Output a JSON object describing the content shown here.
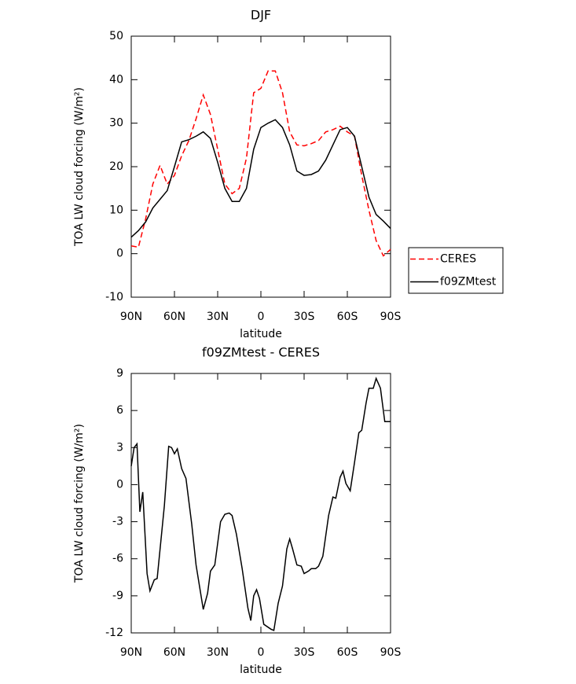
{
  "chart_data": [
    {
      "type": "line",
      "title": "DJF",
      "xlabel": "latitude",
      "ylabel": "TOA LW cloud forcing (W/m²)",
      "x": [
        90,
        85,
        80,
        75,
        70,
        65,
        60,
        55,
        50,
        45,
        40,
        35,
        30,
        25,
        20,
        15,
        10,
        5,
        0,
        -5,
        -10,
        -15,
        -20,
        -25,
        -30,
        -35,
        -40,
        -45,
        -50,
        -55,
        -60,
        -65,
        -70,
        -75,
        -80,
        -85,
        -90
      ],
      "series": [
        {
          "name": "CERES",
          "color": "#ff0000",
          "linestyle": "dashed",
          "values": [
            1.8,
            1.5,
            8,
            16,
            20.3,
            16,
            18,
            22.5,
            26,
            31,
            36.5,
            32,
            24,
            16,
            13.8,
            15,
            22,
            37,
            38,
            42,
            42,
            37,
            28,
            25,
            24.8,
            25.3,
            26,
            28,
            28.5,
            29.3,
            28,
            27,
            18,
            10,
            3,
            -0.5,
            1
          ]
        },
        {
          "name": "f09ZMtest",
          "color": "#000000",
          "linestyle": "solid",
          "values": [
            3.8,
            5.3,
            7.3,
            10.5,
            12.5,
            14.5,
            20,
            25.7,
            26.2,
            27,
            28,
            26.5,
            21,
            15,
            12,
            12,
            15,
            24,
            29,
            30,
            30.8,
            29,
            25,
            19,
            18,
            18.2,
            19,
            21.5,
            25,
            28.5,
            29,
            27,
            20,
            13,
            9,
            7.5,
            5.8
          ]
        }
      ],
      "xlim": [
        90,
        -90
      ],
      "xticks": [
        {
          "value": 90,
          "label": "90N"
        },
        {
          "value": 60,
          "label": "60N"
        },
        {
          "value": 30,
          "label": "30N"
        },
        0,
        {
          "value": -30,
          "label": "30S"
        },
        {
          "value": -60,
          "label": "60S"
        },
        {
          "value": -90,
          "label": "90S"
        }
      ],
      "ylim": [
        -10,
        50
      ],
      "yticks": [
        -10,
        0,
        10,
        20,
        30,
        40,
        50
      ],
      "legend": "right"
    },
    {
      "type": "line",
      "title": "f09ZMtest - CERES",
      "xlabel": "latitude",
      "ylabel": "TOA LW cloud forcing (W/m²)",
      "x": [
        90,
        88,
        86,
        84,
        82,
        79,
        77,
        74,
        72,
        67,
        64,
        62,
        60,
        58,
        55,
        52,
        48,
        45,
        40,
        37,
        35,
        32,
        28,
        25,
        22,
        20,
        17,
        13,
        9,
        7,
        5,
        3,
        1,
        -2,
        -7,
        -9,
        -12,
        -15,
        -18,
        -20,
        -22,
        -25,
        -28,
        -30,
        -33,
        -35,
        -38,
        -40,
        -43,
        -47,
        -50,
        -52,
        -55,
        -57,
        -59,
        -62,
        -65,
        -68,
        -70,
        -73,
        -75,
        -78,
        -80,
        -83,
        -86,
        -90
      ],
      "series": [
        {
          "color": "#000000",
          "linestyle": "solid",
          "values": [
            1.5,
            3,
            3.3,
            -2.2,
            -0.6,
            -7.2,
            -8.6,
            -7.7,
            -7.6,
            -1.7,
            3.1,
            3,
            2.5,
            2.9,
            1.3,
            0.5,
            -3.2,
            -6.5,
            -10.1,
            -8.8,
            -7,
            -6.5,
            -3,
            -2.4,
            -2.3,
            -2.5,
            -4,
            -6.8,
            -10,
            -11,
            -9,
            -8.5,
            -9.2,
            -11.3,
            -11.7,
            -11.8,
            -9.6,
            -8.2,
            -5.2,
            -4.4,
            -5.2,
            -6.5,
            -6.6,
            -7.2,
            -7,
            -6.8,
            -6.8,
            -6.6,
            -5.8,
            -2.5,
            -1,
            -1.1,
            0.6,
            1.1,
            0.1,
            -0.5,
            1.8,
            4.2,
            4.4,
            6.6,
            7.8,
            7.8,
            8.6,
            7.8,
            5.1,
            5.1
          ]
        }
      ],
      "xlim": [
        90,
        -90
      ],
      "xticks": [
        {
          "value": 90,
          "label": "90N"
        },
        {
          "value": 60,
          "label": "60N"
        },
        {
          "value": 30,
          "label": "30N"
        },
        0,
        {
          "value": -30,
          "label": "30S"
        },
        {
          "value": -60,
          "label": "60S"
        },
        {
          "value": -90,
          "label": "90S"
        }
      ],
      "ylim": [
        -12,
        9
      ],
      "yticks": [
        -12,
        -9,
        -6,
        -3,
        0,
        3,
        6,
        9
      ]
    }
  ]
}
